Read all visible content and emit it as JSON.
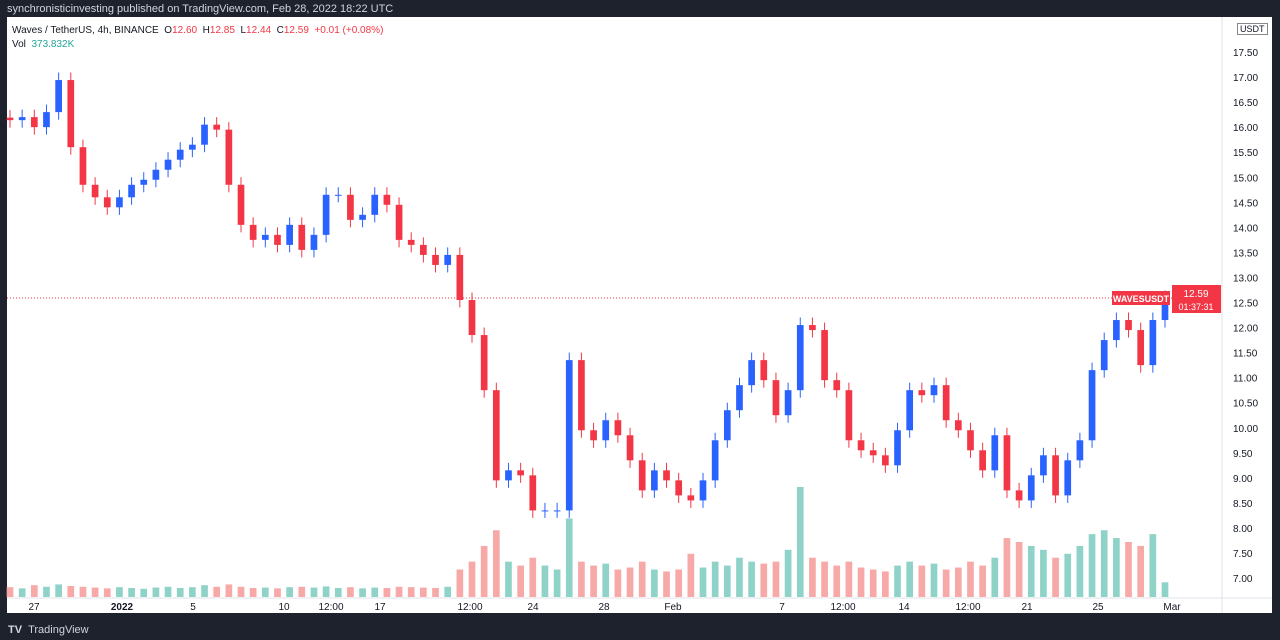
{
  "header": {
    "published": "synchronisticinvesting published on TradingView.com, Feb 28, 2022 18:22 UTC"
  },
  "legend": {
    "symbol": "Waves / TetherUS, 4h, BINANCE",
    "o_label": "O",
    "o": "12.60",
    "h_label": "H",
    "h": "12.85",
    "l_label": "L",
    "l": "12.44",
    "c_label": "C",
    "c": "12.59",
    "change": "+0.01 (+0.08%)",
    "vol_label": "Vol",
    "vol": "373.832K"
  },
  "currency": "USDT",
  "last_price": {
    "ticker": "WAVESUSDT",
    "price": "12.59",
    "countdown": "01:37:31",
    "value": 12.59
  },
  "footer": {
    "brand": "TradingView"
  },
  "colors": {
    "up": "#2962ff",
    "down": "#f23645",
    "vol_up": "#8fd3c8",
    "vol_down": "#f7a9a7",
    "background": "#ffffff",
    "frame": "#1e222d"
  },
  "chart_data": {
    "type": "candlestick",
    "interval": "4h",
    "ylim": [
      6.6,
      17.9
    ],
    "y_ticks": [
      "17.50",
      "17.00",
      "16.50",
      "16.00",
      "15.50",
      "15.00",
      "14.50",
      "14.00",
      "13.50",
      "13.00",
      "12.50",
      "12.00",
      "11.50",
      "11.00",
      "10.50",
      "10.00",
      "9.50",
      "9.00",
      "8.50",
      "8.00",
      "7.50",
      "7.00"
    ],
    "x_ticks": [
      "27",
      "2022",
      "5",
      "10",
      "12:00",
      "17",
      "12:00",
      "24",
      "28",
      "Feb",
      "7",
      "12:00",
      "14",
      "12:00",
      "21",
      "25",
      "Mar"
    ],
    "closes": [
      16.14,
      16.2,
      16.0,
      16.3,
      16.94,
      15.6,
      14.85,
      14.6,
      14.4,
      14.6,
      14.85,
      14.95,
      15.15,
      15.35,
      15.55,
      15.65,
      16.05,
      15.95,
      14.85,
      14.05,
      13.75,
      13.85,
      13.65,
      14.05,
      13.55,
      13.85,
      14.65,
      14.65,
      14.15,
      14.25,
      14.65,
      14.45,
      13.75,
      13.65,
      13.45,
      13.25,
      13.45,
      12.55,
      11.85,
      10.75,
      8.95,
      9.15,
      9.05,
      8.35,
      8.35,
      8.35,
      11.35,
      9.95,
      9.75,
      10.15,
      9.85,
      9.35,
      8.75,
      9.15,
      8.95,
      8.65,
      8.55,
      8.95,
      9.75,
      10.35,
      10.85,
      11.35,
      10.95,
      10.25,
      10.75,
      12.05,
      11.95,
      10.95,
      10.75,
      9.75,
      9.55,
      9.45,
      9.25,
      9.95,
      10.75,
      10.65,
      10.85,
      10.15,
      9.95,
      9.55,
      9.15,
      9.85,
      8.75,
      8.55,
      9.05,
      9.45,
      8.65,
      9.35,
      9.75,
      11.15,
      11.75,
      12.15,
      11.95,
      11.25,
      12.15,
      12.59
    ],
    "volumes_k": [
      250,
      220,
      300,
      260,
      320,
      280,
      260,
      240,
      220,
      250,
      230,
      210,
      240,
      260,
      230,
      250,
      300,
      260,
      320,
      260,
      230,
      240,
      220,
      250,
      260,
      240,
      270,
      230,
      250,
      220,
      240,
      230,
      260,
      250,
      240,
      230,
      260,
      700,
      900,
      1300,
      1700,
      900,
      800,
      1000,
      800,
      700,
      2000,
      900,
      800,
      850,
      700,
      750,
      900,
      700,
      650,
      700,
      1100,
      750,
      900,
      800,
      1000,
      900,
      850,
      900,
      1200,
      2800,
      1000,
      900,
      800,
      900,
      750,
      700,
      650,
      800,
      900,
      800,
      850,
      700,
      750,
      900,
      800,
      1000,
      1500,
      1400,
      1300,
      1200,
      1000,
      1100,
      1300,
      1600,
      1700,
      1500,
      1400,
      1300,
      1600,
      374
    ]
  }
}
